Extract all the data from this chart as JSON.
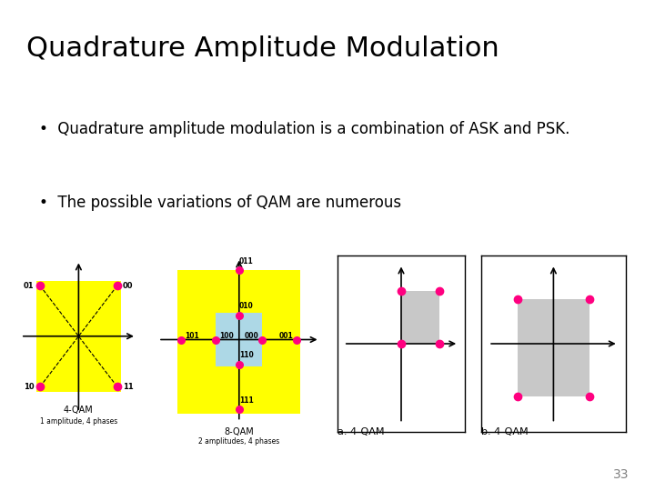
{
  "title": "Quadrature Amplitude Modulation",
  "title_bg": "#d6e8f5",
  "slide_bg": "#ffffff",
  "bullet1": "Quadrature amplitude modulation is a combination of ASK and PSK.",
  "bullet2": "The possible variations of QAM are numerous",
  "page_number": "33",
  "dot_color": "#ff0080",
  "yellow": "#ffff00",
  "light_blue": "#add8e6",
  "gray": "#c8c8c8"
}
